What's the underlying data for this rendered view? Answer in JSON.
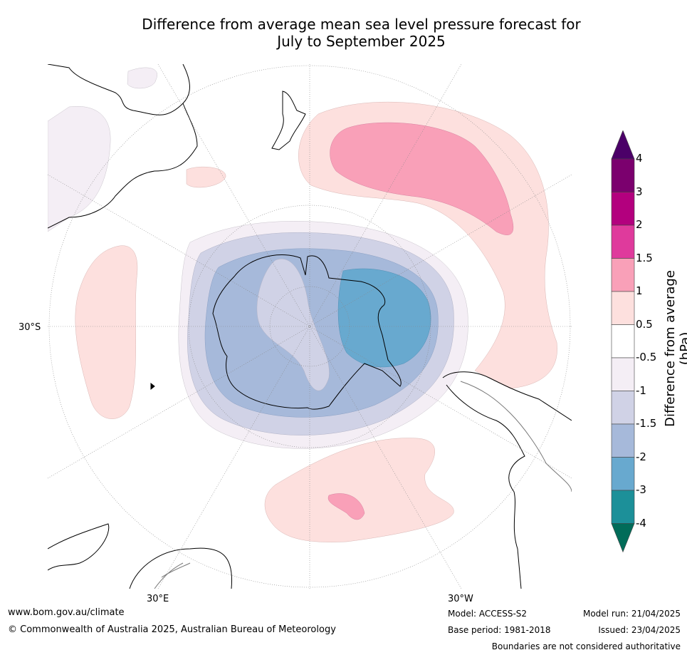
{
  "title_line1": "Difference from average mean sea level pressure forecast for",
  "title_line2": "July to September 2025",
  "lat_labels": {
    "west": "30°S",
    "left_bottom": "30°E",
    "right_bottom": "30°W"
  },
  "colorbar": {
    "axis_label": "Difference from average (hPa)",
    "levels": [
      "4",
      "3",
      "2",
      "1.5",
      "1",
      "0.5",
      "-0.5",
      "-1",
      "-1.5",
      "-2",
      "-3",
      "-4"
    ],
    "colors": [
      "#4b0068",
      "#7b006e",
      "#b3007e",
      "#df3a9c",
      "#f9a0b8",
      "#fde0de",
      "#ffffff",
      "#f4eef5",
      "#d0d2e6",
      "#a6b9da",
      "#68a9cf",
      "#1c9099",
      "#016c59"
    ]
  },
  "footer": {
    "url": "www.bom.gov.au/climate",
    "copyright": "© Commonwealth of Australia 2025, Australian Bureau of Meteorology",
    "model": "Model: ACCESS-S2",
    "base_period": "Base period: 1981-2018",
    "model_run": "Model run: 21/04/2025",
    "issued": "Issued: 23/04/2025",
    "disclaimer": "Boundaries are not considered authoritative"
  }
}
